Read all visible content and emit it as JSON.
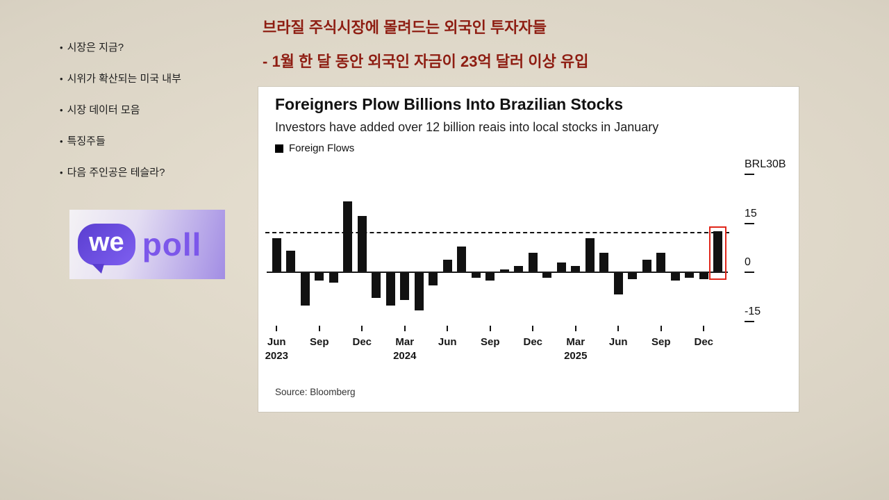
{
  "sidebar": {
    "bullet": "•",
    "items": [
      {
        "label": "시장은 지금?"
      },
      {
        "label": "시위가 확산되는 미국 내부"
      },
      {
        "label": "시장 데이터 모음"
      },
      {
        "label": "특징주들"
      },
      {
        "label": "다음 주인공은 테슬라?"
      }
    ]
  },
  "headline": {
    "line1": "브라질 주식시장에 몰려드는 외국인 투자자들",
    "line2": "- 1월 한 달 동안 외국인 자금이 23억 달러 이상 유입",
    "color": "#8e1d12"
  },
  "logo": {
    "we": "we",
    "poll": "poll",
    "bubble_color": "#5a3ed0",
    "poll_color": "#7c57ea"
  },
  "chart_data": {
    "type": "bar",
    "title": "Foreigners Plow Billions Into Brazilian Stocks",
    "subtitle": "Investors have added over 12 billion reais into local stocks in January",
    "legend": {
      "label": "Foreign Flows",
      "color": "#000000"
    },
    "source": "Source: Bloomberg",
    "bar_color": "#111111",
    "highlight_box_color": "#e0261a",
    "ylabel_unit": "BRL billions",
    "ylim": [
      -19,
      33
    ],
    "grid": false,
    "legend_position": "top-left",
    "categories": [
      "Jun 2023",
      "Jul 2023",
      "Aug 2023",
      "Sep 2023",
      "Oct 2023",
      "Nov 2023",
      "Dec 2023",
      "Jan 2024",
      "Feb 2024",
      "Mar 2024",
      "Apr 2024",
      "May 2024",
      "Jun 2024",
      "Jul 2024",
      "Aug 2024",
      "Sep 2024",
      "Oct 2024",
      "Nov 2024",
      "Dec 2024",
      "Jan 2025",
      "Feb 2025",
      "Mar 2025",
      "Apr 2025",
      "May 2025",
      "Jun 2025",
      "Jul 2025",
      "Aug 2025",
      "Sep 2025",
      "Oct 2025",
      "Nov 2025",
      "Dec 2025",
      "Jan 2026"
    ],
    "values": [
      10.5,
      6.7,
      -10,
      -2.5,
      -3,
      21.8,
      17.4,
      -7.8,
      -10,
      -8.4,
      -11.5,
      -4,
      4,
      8,
      -1.5,
      -2.5,
      1,
      2,
      6,
      -1.5,
      3,
      2,
      10.5,
      6,
      -6.7,
      -2,
      4,
      6,
      -2.5,
      -1.5,
      -2,
      12.6
    ],
    "yticks": [
      {
        "label": "BRL30B",
        "value": 30
      },
      {
        "label": "15",
        "value": 15
      },
      {
        "label": "0",
        "value": 0
      },
      {
        "label": "-15",
        "value": -15
      }
    ],
    "xticks": [
      {
        "index": 0,
        "line1": "Jun",
        "line2": "2023"
      },
      {
        "index": 3,
        "line1": "Sep",
        "line2": ""
      },
      {
        "index": 6,
        "line1": "Dec",
        "line2": ""
      },
      {
        "index": 9,
        "line1": "Mar",
        "line2": "2024"
      },
      {
        "index": 12,
        "line1": "Jun",
        "line2": ""
      },
      {
        "index": 15,
        "line1": "Sep",
        "line2": ""
      },
      {
        "index": 18,
        "line1": "Dec",
        "line2": ""
      },
      {
        "index": 21,
        "line1": "Mar",
        "line2": "2025"
      },
      {
        "index": 24,
        "line1": "Jun",
        "line2": ""
      },
      {
        "index": 27,
        "line1": "Sep",
        "line2": ""
      },
      {
        "index": 30,
        "line1": "Dec",
        "line2": ""
      }
    ],
    "reference_line_value": 12.3,
    "highlight_index": 31
  }
}
